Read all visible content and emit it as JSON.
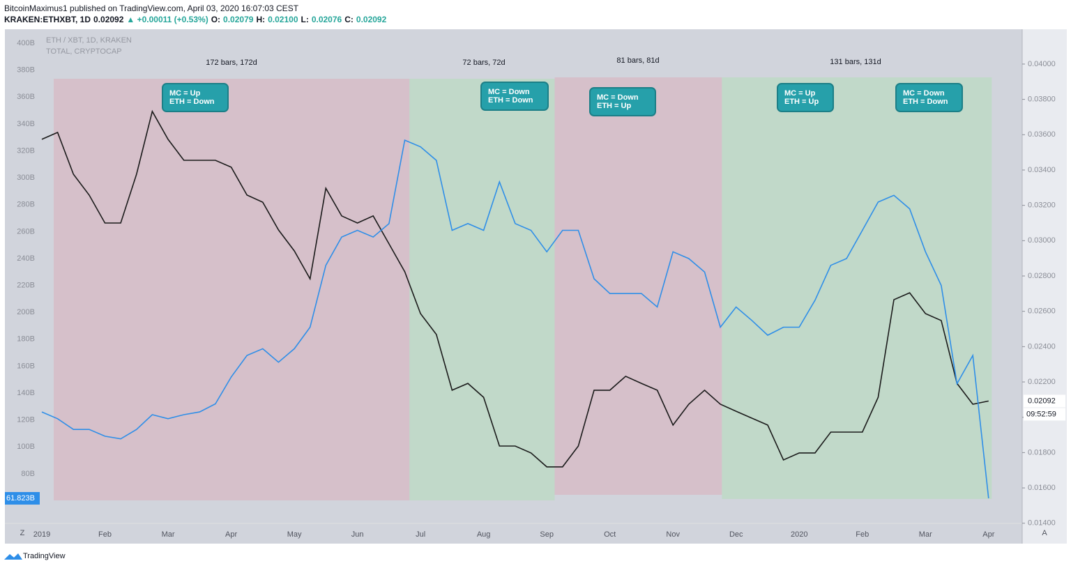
{
  "header": {
    "byline": "BitcoinMaximus1 published on TradingView.com, April 03, 2020 16:07:03 CEST",
    "quote": [
      {
        "text": "KRAKEN:ETHXBT, 1D",
        "color": "#131722"
      },
      {
        "text": "0.02092",
        "color": "#131722"
      },
      {
        "text": "▲ +0.00011 (+0.53%)",
        "color": "#26a69a"
      },
      {
        "text": "O:",
        "color": "#131722"
      },
      {
        "text": "0.02079",
        "color": "#26a69a"
      },
      {
        "text": "H:",
        "color": "#131722"
      },
      {
        "text": "0.02100",
        "color": "#26a69a"
      },
      {
        "text": "L:",
        "color": "#131722"
      },
      {
        "text": "0.02076",
        "color": "#26a69a"
      },
      {
        "text": "C:",
        "color": "#131722"
      },
      {
        "text": "0.02092",
        "color": "#26a69a"
      }
    ]
  },
  "chart_data": {
    "type": "line",
    "categories": [
      "2019",
      null,
      null,
      null,
      "Feb",
      null,
      null,
      null,
      "Mar",
      null,
      null,
      null,
      "Apr",
      null,
      null,
      null,
      "May",
      null,
      null,
      null,
      "Jun",
      null,
      null,
      null,
      "Jul",
      null,
      null,
      null,
      "Aug",
      null,
      null,
      null,
      "Sep",
      null,
      null,
      null,
      "Oct",
      null,
      null,
      null,
      "Nov",
      null,
      null,
      null,
      "Dec",
      null,
      null,
      null,
      "2020",
      null,
      null,
      null,
      "Feb",
      null,
      null,
      null,
      "Mar",
      null,
      null,
      null,
      "Apr"
    ],
    "series": [
      {
        "name": "ETH / XBT, 1D, KRAKEN",
        "color": "#1a1a1a",
        "axis": "y2",
        "values": [
          0.03574,
          0.03613,
          0.03376,
          0.03258,
          0.031,
          0.031,
          0.03376,
          0.03732,
          0.03574,
          0.03455,
          0.03455,
          0.03455,
          0.03416,
          0.03258,
          0.03218,
          0.03061,
          0.02942,
          0.02784,
          0.03297,
          0.0314,
          0.031,
          0.0314,
          0.02982,
          0.02824,
          0.02587,
          0.02469,
          0.02153,
          0.02192,
          0.02113,
          0.01837,
          0.01837,
          0.01798,
          0.01719,
          0.01719,
          0.01837,
          0.02153,
          0.02153,
          0.02232,
          0.02192,
          0.02153,
          0.01956,
          0.02074,
          0.02153,
          0.02074,
          0.02034,
          0.01995,
          0.01956,
          0.01758,
          0.01798,
          0.01798,
          0.01916,
          0.01916,
          0.01916,
          0.02113,
          0.02666,
          0.02705,
          0.02587,
          0.02548,
          0.02192,
          0.02074,
          0.02092
        ]
      },
      {
        "name": "TOTAL, CRYPTOCAP",
        "color": "#2e8ee8",
        "axis": "y",
        "values": [
          126,
          121,
          113,
          113,
          108,
          106,
          113,
          124,
          121,
          124,
          126,
          132,
          152,
          168,
          173,
          163,
          173,
          189,
          235,
          256,
          261,
          256,
          266,
          328,
          323,
          313,
          261,
          266,
          261,
          297,
          266,
          261,
          245,
          261,
          261,
          225,
          214,
          214,
          214,
          204,
          245,
          240,
          230,
          189,
          204,
          194,
          183,
          189,
          189,
          209,
          235,
          240,
          261,
          282,
          287,
          277,
          245,
          220,
          147,
          168,
          61.823
        ]
      }
    ],
    "ylim": [
      43.7,
      410.4
    ],
    "yticks": [
      {
        "value": 80,
        "label": "80B"
      },
      {
        "value": 100,
        "label": "100B"
      },
      {
        "value": 120,
        "label": "120B"
      },
      {
        "value": 140,
        "label": "140B"
      },
      {
        "value": 160,
        "label": "160B"
      },
      {
        "value": 180,
        "label": "180B"
      },
      {
        "value": 200,
        "label": "200B"
      },
      {
        "value": 220,
        "label": "220B"
      },
      {
        "value": 240,
        "label": "240B"
      },
      {
        "value": 260,
        "label": "260B"
      },
      {
        "value": 280,
        "label": "280B"
      },
      {
        "value": 300,
        "label": "300B"
      },
      {
        "value": 320,
        "label": "320B"
      },
      {
        "value": 340,
        "label": "340B"
      },
      {
        "value": 360,
        "label": "360B"
      },
      {
        "value": 380,
        "label": "380B"
      },
      {
        "value": 400,
        "label": "400B"
      }
    ],
    "y2lim": [
      0.01403,
      0.04197
    ],
    "y2ticks": [
      {
        "value": 0.014,
        "label": "0.01400"
      },
      {
        "value": 0.016,
        "label": "0.01600"
      },
      {
        "value": 0.018,
        "label": "0.01800"
      },
      {
        "value": 0.02,
        "label": "0.02000"
      },
      {
        "value": 0.022,
        "label": "0.02200"
      },
      {
        "value": 0.024,
        "label": "0.02400"
      },
      {
        "value": 0.026,
        "label": "0.02600"
      },
      {
        "value": 0.028,
        "label": "0.02800"
      },
      {
        "value": 0.03,
        "label": "0.03000"
      },
      {
        "value": 0.032,
        "label": "0.03200"
      },
      {
        "value": 0.034,
        "label": "0.03400"
      },
      {
        "value": 0.036,
        "label": "0.03600"
      },
      {
        "value": 0.038,
        "label": "0.03800"
      },
      {
        "value": 0.04,
        "label": "0.04000"
      }
    ],
    "grid": false,
    "regions": [
      {
        "label": "172 bars, 172d",
        "color": "#d6bec8"
      },
      {
        "label": "72 bars, 72d",
        "color": "#bfd9c7"
      },
      {
        "label": "81 bars, 81d",
        "color": "#d6bec8"
      },
      {
        "label": "131 bars, 131d",
        "color": "#bfd9c7"
      }
    ],
    "callouts": [
      {
        "lines": [
          "MC =   Up",
          "ETH = Down"
        ]
      },
      {
        "lines": [
          "MC  =  Down",
          "ETH =  Down"
        ]
      },
      {
        "lines": [
          "MC  =  Down",
          "ETH =  Up"
        ]
      },
      {
        "lines": [
          "MC  =  Up",
          "ETH =  Up"
        ]
      },
      {
        "lines": [
          "MC  =  Down",
          "ETH =  Down"
        ]
      }
    ],
    "price_labels": [
      {
        "value": 61.823,
        "label": "61.823B",
        "axis": "y",
        "color": "#2e8ee8"
      },
      {
        "value": 0.02092,
        "label": "0.02092",
        "axis": "y2",
        "color": "#ffffff"
      }
    ],
    "countdown": "09:52:59",
    "buttons": [
      "Z",
      "A"
    ]
  },
  "footer": {
    "brand": "TradingView"
  }
}
